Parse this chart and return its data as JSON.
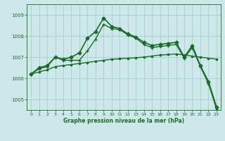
{
  "background_color": "#cce8e8",
  "grid_color": "#aacccc",
  "line_color": "#1a6b2a",
  "xlabel": "Graphe pression niveau de la mer (hPa)",
  "ylim": [
    1004.5,
    1009.5
  ],
  "xlim": [
    -0.5,
    23.5
  ],
  "yticks": [
    1005,
    1006,
    1007,
    1008,
    1009
  ],
  "xtick_labels": [
    "0",
    "1",
    "2",
    "3",
    "4",
    "5",
    "6",
    "7",
    "8",
    "9",
    "10",
    "11",
    "12",
    "13",
    "14",
    "15",
    "16",
    "17",
    "18",
    "19",
    "20",
    "21",
    "22",
    "23"
  ],
  "series": [
    {
      "x": [
        0,
        1,
        2,
        3,
        4,
        5,
        6,
        7,
        8,
        9,
        10,
        11,
        12,
        13,
        14,
        15,
        16,
        17,
        18,
        19,
        20,
        21,
        22,
        23
      ],
      "y": [
        1006.2,
        1006.5,
        1006.6,
        1007.0,
        1006.9,
        1007.0,
        1007.2,
        1007.9,
        1008.2,
        1008.85,
        1008.45,
        1008.35,
        1008.1,
        1007.95,
        1007.7,
        1007.55,
        1007.6,
        1007.65,
        1007.7,
        1007.0,
        1007.55,
        1006.6,
        1005.85,
        1004.65
      ],
      "style": "-",
      "marker": "D",
      "markersize": 2.5,
      "linewidth": 1.2
    },
    {
      "x": [
        0,
        1,
        2,
        3,
        4,
        5,
        6,
        7,
        8,
        9,
        10,
        11,
        12,
        13,
        14,
        15,
        16,
        17,
        18,
        19,
        20,
        21,
        22,
        23
      ],
      "y": [
        1006.2,
        1006.3,
        1006.4,
        1006.55,
        1006.6,
        1006.65,
        1006.7,
        1006.75,
        1006.8,
        1006.85,
        1006.9,
        1006.92,
        1006.95,
        1006.97,
        1007.0,
        1007.05,
        1007.1,
        1007.12,
        1007.15,
        1007.1,
        1007.05,
        1007.0,
        1006.95,
        1006.9
      ],
      "style": "-",
      "marker": "s",
      "markersize": 2.0,
      "linewidth": 1.0
    },
    {
      "x": [
        0,
        1,
        2,
        3,
        4,
        5,
        6,
        7,
        8,
        9,
        10,
        11,
        12,
        13,
        14,
        15,
        16,
        17,
        18,
        19,
        20,
        21,
        22,
        23
      ],
      "y": [
        1006.2,
        1006.45,
        1006.55,
        1007.0,
        1006.85,
        1006.85,
        1006.85,
        1007.3,
        1007.85,
        1008.55,
        1008.35,
        1008.3,
        1008.05,
        1007.9,
        1007.6,
        1007.45,
        1007.5,
        1007.55,
        1007.6,
        1006.95,
        1007.45,
        1006.55,
        1005.75,
        1004.55
      ],
      "style": "-",
      "marker": "+",
      "markersize": 3.5,
      "linewidth": 1.0
    }
  ]
}
